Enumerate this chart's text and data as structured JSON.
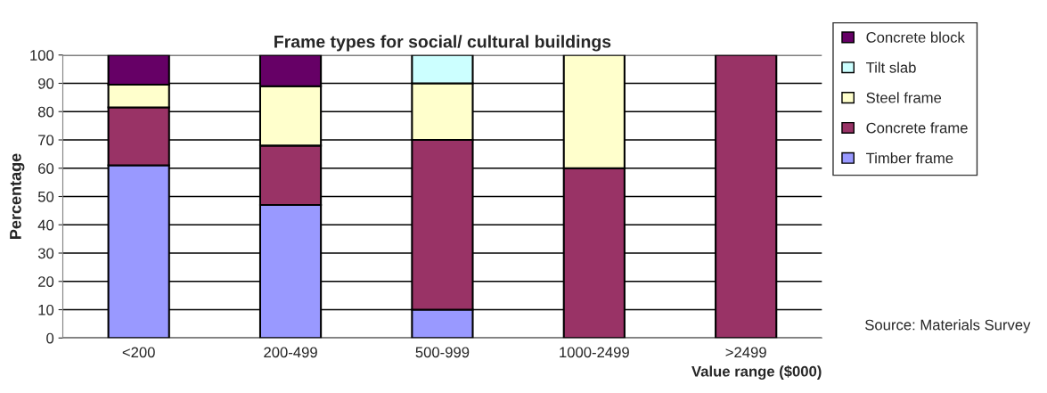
{
  "chart_data": {
    "type": "bar",
    "title": "Frame types for social/ cultural buildings",
    "xlabel": "Value range ($000)",
    "ylabel": "Percentage",
    "categories": [
      "<200",
      "200-499",
      "500-999",
      "1000-2499",
      ">2499"
    ],
    "stacked": true,
    "series": [
      {
        "name": "Timber frame",
        "color": "#9999ff",
        "values": [
          61,
          47,
          10,
          0,
          0
        ]
      },
      {
        "name": "Concrete frame",
        "color": "#993366",
        "values": [
          20.5,
          21,
          60,
          60,
          100
        ]
      },
      {
        "name": "Steel frame",
        "color": "#ffffcc",
        "values": [
          8,
          21,
          20,
          40,
          0
        ]
      },
      {
        "name": "Tilt slab",
        "color": "#ccffff",
        "values": [
          0,
          0,
          10,
          0,
          0
        ]
      },
      {
        "name": "Concrete block",
        "color": "#660066",
        "values": [
          10.5,
          11,
          0,
          0,
          0
        ]
      }
    ],
    "ylim": [
      0,
      100
    ],
    "yticks": [
      0,
      10,
      20,
      30,
      40,
      50,
      60,
      70,
      80,
      90,
      100
    ],
    "grid": "y",
    "legend": "right",
    "annotations": [
      "Source: Materials Survey"
    ]
  }
}
